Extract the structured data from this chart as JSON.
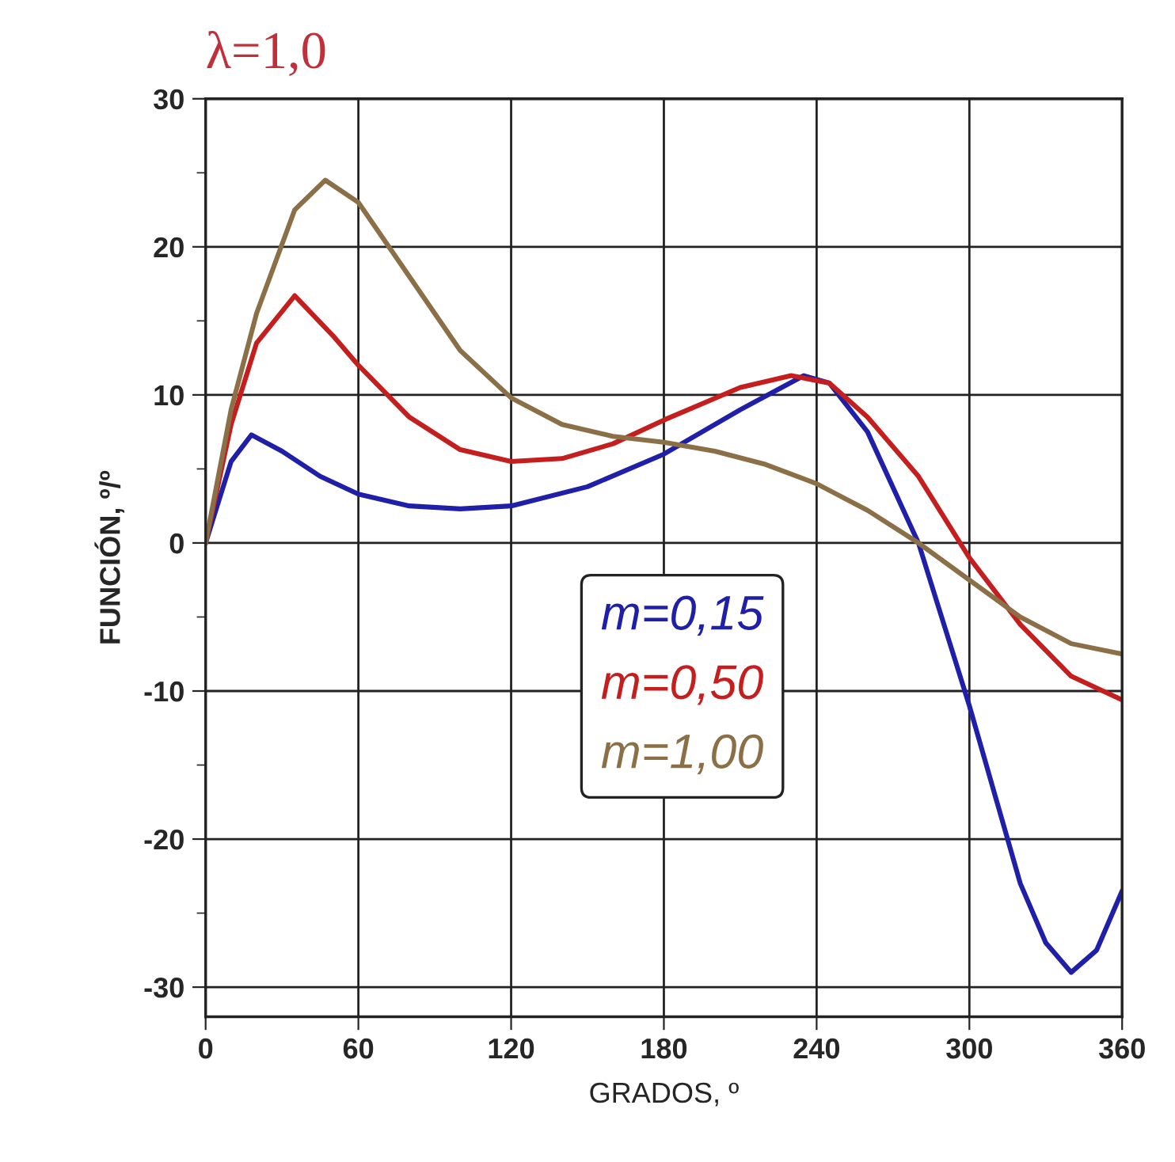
{
  "chart_data": {
    "type": "line",
    "title": "λ=1,0",
    "xlabel": "GRADOS, º",
    "ylabel": "FUNCIÓN, º/º",
    "xlim": [
      0,
      360
    ],
    "xticks": [
      0,
      60,
      120,
      180,
      240,
      300,
      360
    ],
    "ylim": [
      -32,
      30
    ],
    "yticks": [
      -30,
      {
        "value": -25,
        "label": null
      },
      -20,
      {
        "value": -15,
        "label": null
      },
      -10,
      {
        "value": -5,
        "label": null
      },
      0,
      {
        "value": 5,
        "label": null
      },
      10,
      {
        "value": 15,
        "label": null
      },
      20,
      {
        "value": 25,
        "label": null
      },
      30
    ],
    "grid": true,
    "legend": "center",
    "line_style": "solid",
    "marker": "none",
    "series": [
      {
        "name": "m=0,15",
        "color": "#1f1fa8",
        "x": [
          0,
          10,
          18,
          30,
          45,
          60,
          80,
          100,
          120,
          150,
          180,
          210,
          235,
          245,
          260,
          280,
          300,
          320,
          330,
          340,
          350,
          360
        ],
        "values": [
          0,
          5.5,
          7.3,
          6.2,
          4.5,
          3.3,
          2.5,
          2.3,
          2.5,
          3.8,
          6.0,
          9.0,
          11.3,
          10.8,
          7.5,
          0,
          -11,
          -23,
          -27,
          -29,
          -27.5,
          -23.5
        ]
      },
      {
        "name": "m=0,50",
        "color": "#c41e1e",
        "x": [
          0,
          10,
          20,
          35,
          50,
          60,
          80,
          100,
          120,
          140,
          160,
          180,
          210,
          230,
          245,
          260,
          280,
          300,
          320,
          340,
          360
        ],
        "values": [
          0,
          8,
          13.5,
          16.7,
          14,
          12,
          8.5,
          6.3,
          5.5,
          5.7,
          6.7,
          8.3,
          10.5,
          11.3,
          10.8,
          8.5,
          4.5,
          -1,
          -5.5,
          -9,
          -10.6
        ]
      },
      {
        "name": "m=1,00",
        "color": "#8b6f47",
        "x": [
          0,
          10,
          20,
          35,
          47,
          60,
          80,
          100,
          120,
          140,
          160,
          180,
          200,
          220,
          240,
          260,
          280,
          300,
          320,
          340,
          360
        ],
        "values": [
          0,
          9,
          15.5,
          22.5,
          24.5,
          23,
          18,
          13,
          9.8,
          8,
          7.2,
          6.8,
          6.2,
          5.3,
          4,
          2.2,
          0,
          -2.5,
          -5,
          -6.8,
          -7.5
        ]
      }
    ]
  }
}
